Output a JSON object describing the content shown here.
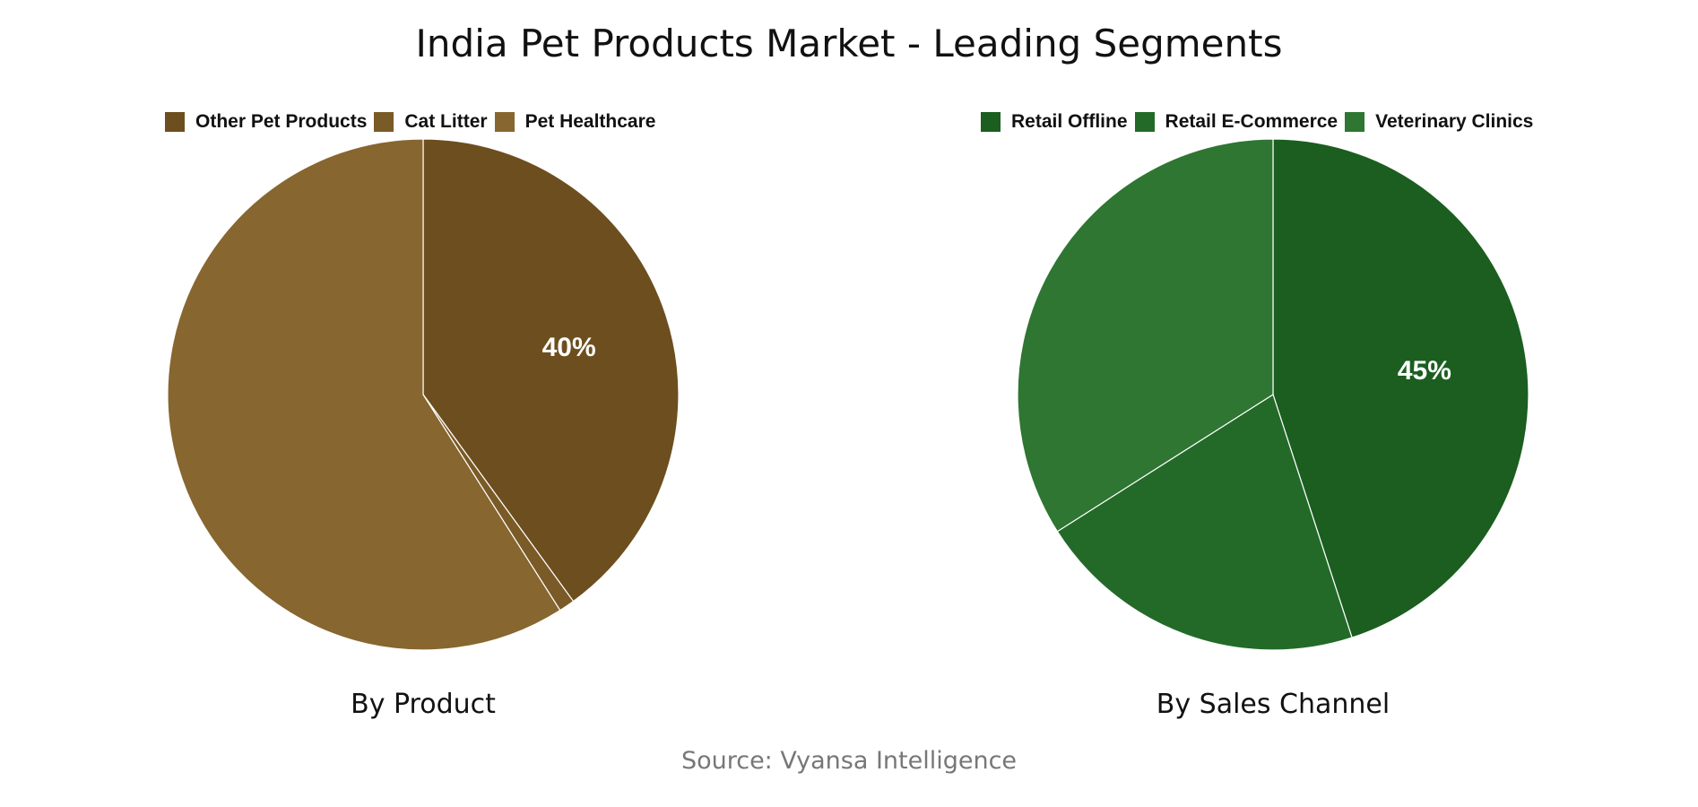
{
  "title": "India Pet Products Market - Leading Segments",
  "source": "Source: Vyansa Intelligence",
  "chart_data": [
    {
      "type": "pie",
      "title": "By Product",
      "labels": [
        "Other Pet Products",
        "Cat Litter",
        "Pet Healthcare"
      ],
      "values": [
        40,
        1,
        59
      ],
      "colors": [
        "#6d4e1e",
        "#7a5a26",
        "#87662f"
      ],
      "data_labels": [
        "40%",
        "",
        ""
      ],
      "legend_position": "top"
    },
    {
      "type": "pie",
      "title": "By Sales Channel",
      "labels": [
        "Retail Offline",
        "Retail E-Commerce",
        "Veterinary Clinics"
      ],
      "values": [
        45,
        21,
        34
      ],
      "colors": [
        "#1b5e20",
        "#236a29",
        "#2e7632"
      ],
      "data_labels": [
        "45%",
        "",
        ""
      ],
      "legend_position": "top"
    }
  ]
}
